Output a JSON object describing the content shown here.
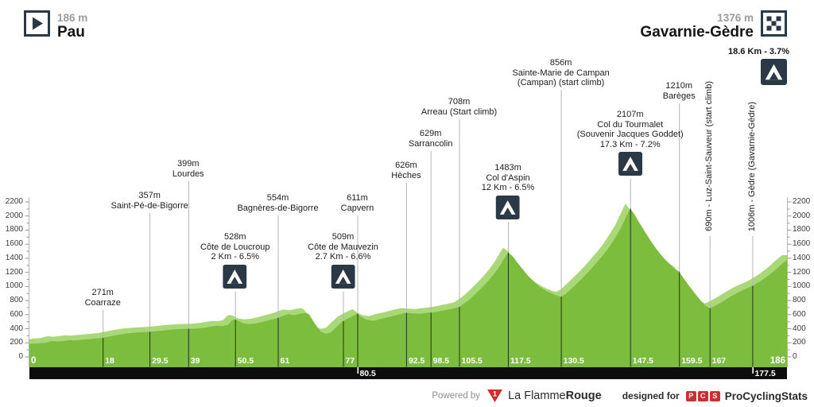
{
  "header": {
    "start": {
      "elevation": "186 m",
      "name": "Pau"
    },
    "finish": {
      "elevation": "1376 m",
      "name": "Gavarnie-Gèdre",
      "final_climb": "18.6 Km - 3.7%"
    }
  },
  "footer": {
    "powered_by": "Powered by",
    "brand_regular": "La Flamme",
    "brand_bold": "Rouge",
    "designed_for": "designed for",
    "pcs_letters": [
      "P",
      "C",
      "S"
    ],
    "pcs_name": "ProCyclingStats"
  },
  "colors": {
    "profile_main": "#7cbd3e",
    "profile_light": "#a9d878",
    "icon_navy": "#2b3947",
    "bar": "#0d0d0d",
    "brand_red": "#cf2e2e",
    "marker_line_gray": "#b4b4b4",
    "axis_gray": "#9a9a9a"
  },
  "chart_data": {
    "type": "area",
    "title": "Stage profile Pau - Gavarnie-Gèdre",
    "x_unit": "km",
    "y_unit": "m",
    "xlim": [
      0,
      186
    ],
    "ylim": [
      0,
      2200
    ],
    "y_ticks": [
      0,
      200,
      400,
      600,
      800,
      1000,
      1200,
      1400,
      1600,
      1800,
      2000,
      2200
    ],
    "y_minor_step": 100,
    "x_ticks": [
      {
        "km": 0,
        "label": "0",
        "edge": "left"
      },
      {
        "km": 18,
        "label": "18"
      },
      {
        "km": 29.5,
        "label": "29.5"
      },
      {
        "km": 39,
        "label": "39"
      },
      {
        "km": 50.5,
        "label": "50.5"
      },
      {
        "km": 61,
        "label": "61"
      },
      {
        "km": 77,
        "label": "77"
      },
      {
        "km": 80.5,
        "label": "80.5",
        "on_bar": true
      },
      {
        "km": 92.5,
        "label": "92.5"
      },
      {
        "km": 98.5,
        "label": "98.5"
      },
      {
        "km": 105.5,
        "label": "105.5"
      },
      {
        "km": 117.5,
        "label": "117.5"
      },
      {
        "km": 130.5,
        "label": "130.5"
      },
      {
        "km": 147.5,
        "label": "147.5"
      },
      {
        "km": 159.5,
        "label": "159.5"
      },
      {
        "km": 167,
        "label": "167"
      },
      {
        "km": 177.5,
        "label": "177.5",
        "on_bar": true
      },
      {
        "km": 186,
        "label": "186",
        "edge": "right"
      }
    ],
    "markers": [
      {
        "km": 18,
        "lines": [
          "271m",
          "Coarraze"
        ],
        "label_top": 362,
        "icon": false
      },
      {
        "km": 29.5,
        "lines": [
          "357m",
          "Saint-Pé-de-Bigorre"
        ],
        "label_top": 240,
        "icon": false
      },
      {
        "km": 39,
        "lines": [
          "399m",
          "Lourdes"
        ],
        "label_top": 200,
        "icon": false
      },
      {
        "km": 50.5,
        "lines": [
          "528m",
          "Côte de Loucroup",
          "2 Km - 6.5%"
        ],
        "label_top": 292,
        "icon": true
      },
      {
        "km": 61,
        "lines": [
          "554m",
          "Bagnères-de-Bigorre"
        ],
        "label_top": 243,
        "icon": false
      },
      {
        "km": 77,
        "lines": [
          "509m",
          "Côte de Mauvezin",
          "2.7 Km - 6.6%"
        ],
        "label_top": 292,
        "icon": true
      },
      {
        "km": 80.5,
        "lines": [
          "611m",
          "Capvern"
        ],
        "label_top": 243,
        "icon": false
      },
      {
        "km": 92.5,
        "lines": [
          "626m",
          "Hèches"
        ],
        "label_top": 202,
        "icon": false
      },
      {
        "km": 98.5,
        "lines": [
          "629m",
          "Sarrancolin"
        ],
        "label_top": 162,
        "icon": false
      },
      {
        "km": 105.5,
        "lines": [
          "708m",
          "Arreau (Start climb)"
        ],
        "label_top": 122,
        "icon": false
      },
      {
        "km": 117.5,
        "lines": [
          "1483m",
          "Col d'Aspin",
          "12 Km - 6.5%"
        ],
        "label_top": 205,
        "icon": true
      },
      {
        "km": 130.5,
        "lines": [
          "856m",
          "Sainte-Marie de Campan",
          "(Campan) (start climb)"
        ],
        "label_top": 73,
        "icon": false
      },
      {
        "km": 147.5,
        "lines": [
          "2107m",
          "Col du Tourmalet",
          "(Souvenir Jacques Goddet)",
          "17.3 Km - 7.2%"
        ],
        "label_top": 138,
        "icon": true
      },
      {
        "km": 159.5,
        "lines": [
          "1210m",
          "Barèges"
        ],
        "label_top": 102,
        "icon": false
      },
      {
        "km": 167,
        "rotated": true,
        "text": "690m - Luz-Saint-Sauveur (start climb)"
      },
      {
        "km": 177.5,
        "rotated": true,
        "text": "1006m - Gèdre (Gavarnie-Gèdre)"
      }
    ],
    "profile": [
      [
        0,
        186
      ],
      [
        2,
        192
      ],
      [
        4,
        200
      ],
      [
        5,
        220
      ],
      [
        6,
        226
      ],
      [
        7,
        219
      ],
      [
        8.5,
        228
      ],
      [
        10,
        240
      ],
      [
        11,
        234
      ],
      [
        13,
        244
      ],
      [
        15,
        254
      ],
      [
        17,
        265
      ],
      [
        18,
        271
      ],
      [
        20,
        293
      ],
      [
        22,
        316
      ],
      [
        24,
        334
      ],
      [
        26,
        345
      ],
      [
        28,
        353
      ],
      [
        29.5,
        357
      ],
      [
        31,
        364
      ],
      [
        33,
        376
      ],
      [
        35,
        388
      ],
      [
        37,
        396
      ],
      [
        39,
        399
      ],
      [
        41,
        404
      ],
      [
        43,
        414
      ],
      [
        44.5,
        430
      ],
      [
        46,
        443
      ],
      [
        47.5,
        440
      ],
      [
        48.7,
        455
      ],
      [
        49.8,
        520
      ],
      [
        50.5,
        528
      ],
      [
        51.3,
        512
      ],
      [
        52.5,
        476
      ],
      [
        54,
        466
      ],
      [
        55.5,
        474
      ],
      [
        57,
        494
      ],
      [
        59,
        524
      ],
      [
        61,
        554
      ],
      [
        62,
        576
      ],
      [
        63.5,
        606
      ],
      [
        65,
        592
      ],
      [
        66.5,
        614
      ],
      [
        68,
        625
      ],
      [
        68.7,
        600
      ],
      [
        70,
        478
      ],
      [
        71.5,
        360
      ],
      [
        72.8,
        331
      ],
      [
        74,
        348
      ],
      [
        75.5,
        432
      ],
      [
        77,
        509
      ],
      [
        78.5,
        556
      ],
      [
        80.5,
        611
      ],
      [
        81.5,
        566
      ],
      [
        82.8,
        528
      ],
      [
        84.5,
        512
      ],
      [
        86.5,
        545
      ],
      [
        88.5,
        570
      ],
      [
        90.5,
        600
      ],
      [
        92.5,
        626
      ],
      [
        94,
        618
      ],
      [
        96,
        612
      ],
      [
        97.2,
        624
      ],
      [
        98.5,
        629
      ],
      [
        100,
        642
      ],
      [
        102,
        662
      ],
      [
        104,
        688
      ],
      [
        105.5,
        708
      ],
      [
        106.5,
        748
      ],
      [
        108,
        812
      ],
      [
        109.5,
        892
      ],
      [
        111,
        978
      ],
      [
        112.5,
        1068
      ],
      [
        114,
        1172
      ],
      [
        115.5,
        1292
      ],
      [
        116.5,
        1392
      ],
      [
        117.5,
        1483
      ],
      [
        118.5,
        1438
      ],
      [
        119.5,
        1362
      ],
      [
        121,
        1252
      ],
      [
        122.5,
        1148
      ],
      [
        124,
        1058
      ],
      [
        125.5,
        988
      ],
      [
        127,
        933
      ],
      [
        128.5,
        893
      ],
      [
        129.7,
        868
      ],
      [
        130.5,
        856
      ],
      [
        131.5,
        886
      ],
      [
        133,
        962
      ],
      [
        134.5,
        1046
      ],
      [
        136,
        1132
      ],
      [
        137.5,
        1222
      ],
      [
        139,
        1322
      ],
      [
        140.5,
        1422
      ],
      [
        142,
        1532
      ],
      [
        143.5,
        1662
      ],
      [
        145,
        1802
      ],
      [
        146.2,
        1952
      ],
      [
        147.5,
        2107
      ],
      [
        148.5,
        2028
      ],
      [
        149.5,
        1928
      ],
      [
        151,
        1788
      ],
      [
        152.5,
        1652
      ],
      [
        154,
        1528
      ],
      [
        155.5,
        1418
      ],
      [
        157,
        1328
      ],
      [
        158.2,
        1262
      ],
      [
        159.5,
        1210
      ],
      [
        160.5,
        1128
      ],
      [
        162,
        1008
      ],
      [
        163.5,
        893
      ],
      [
        165,
        788
      ],
      [
        166,
        728
      ],
      [
        167,
        690
      ],
      [
        168,
        716
      ],
      [
        169.5,
        762
      ],
      [
        171,
        816
      ],
      [
        172.5,
        866
      ],
      [
        174,
        916
      ],
      [
        175.5,
        958
      ],
      [
        177.5,
        1006
      ],
      [
        178.5,
        1042
      ],
      [
        180,
        1096
      ],
      [
        181.5,
        1156
      ],
      [
        183,
        1226
      ],
      [
        184.5,
        1306
      ],
      [
        186,
        1376
      ]
    ]
  }
}
